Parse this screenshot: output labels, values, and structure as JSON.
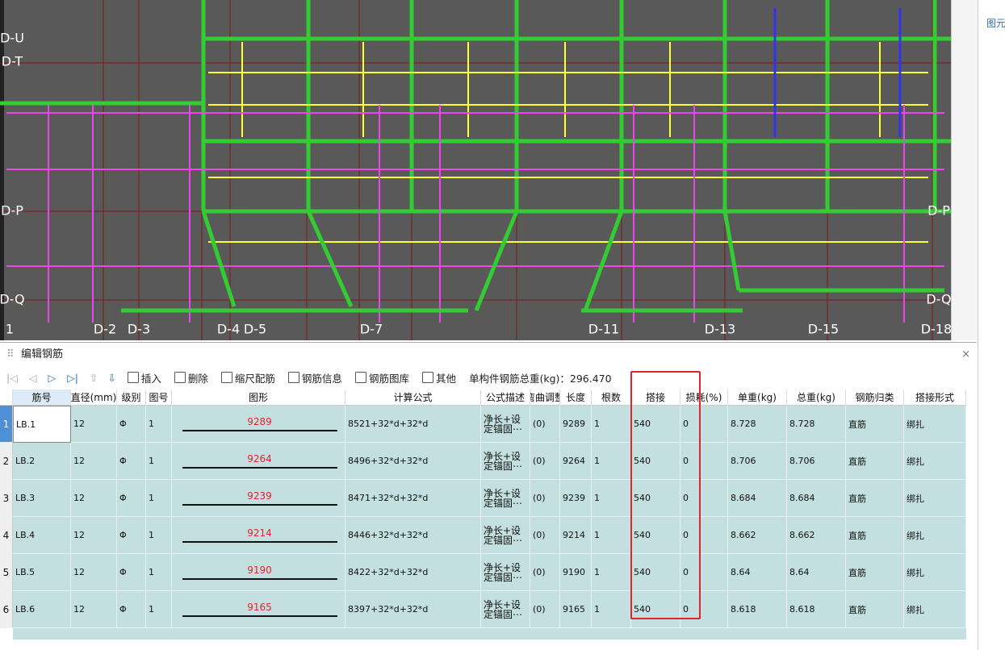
{
  "drawing": {
    "bottom_labels": [
      "1",
      "D-2",
      "D-3",
      "D-4",
      "D-5",
      "D-7",
      "D-11",
      "D-13",
      "D-15",
      "D-18"
    ],
    "side_labels": [
      "D-U",
      "D-T",
      "D-P",
      "D-Q",
      "D-P",
      "D-Q"
    ]
  },
  "side_panel": {
    "tab": "图元"
  },
  "panel": {
    "title": "编辑钢筋",
    "toolbar": [
      "插入",
      "删除",
      "缩尺配筋",
      "钢筋信息",
      "钢筋图库",
      "其他"
    ],
    "total_label": "单构件钢筋总重(kg)：296.470"
  },
  "table": {
    "columns": [
      "筋号",
      "直径(mm)",
      "级别",
      "图号",
      "图形",
      "计算公式",
      "公式描述",
      "弯曲调整",
      "长度",
      "根数",
      "搭接",
      "损耗(%)",
      "单重(kg)",
      "总重(kg)",
      "钢筋归类",
      "搭接形式"
    ],
    "rows": [
      [
        "1",
        "LB.1",
        "12",
        "Φ",
        "1",
        "9289",
        "8521+32*d+32*d",
        "净长+设定锚固⋯",
        "(0)",
        "9289",
        "1",
        "540",
        "0",
        "8.728",
        "8.728",
        "直筋",
        "绑扎"
      ],
      [
        "2",
        "LB.2",
        "12",
        "Φ",
        "1",
        "9264",
        "8496+32*d+32*d",
        "净长+设定锚固⋯",
        "(0)",
        "9264",
        "1",
        "540",
        "0",
        "8.706",
        "8.706",
        "直筋",
        "绑扎"
      ],
      [
        "3",
        "LB.3",
        "12",
        "Φ",
        "1",
        "9239",
        "8471+32*d+32*d",
        "净长+设定锚固⋯",
        "(0)",
        "9239",
        "1",
        "540",
        "0",
        "8.684",
        "8.684",
        "直筋",
        "绑扎"
      ],
      [
        "4",
        "LB.4",
        "12",
        "Φ",
        "1",
        "9214",
        "8446+32*d+32*d",
        "净长+设定锚固⋯",
        "(0)",
        "9214",
        "1",
        "540",
        "0",
        "8.662",
        "8.662",
        "直筋",
        "绑扎"
      ],
      [
        "5",
        "LB.5",
        "12",
        "Φ",
        "1",
        "9190",
        "8422+32*d+32*d",
        "净长+设定锚固⋯",
        "(0)",
        "9190",
        "1",
        "540",
        "0",
        "8.64",
        "8.64",
        "直筋",
        "绑扎"
      ],
      [
        "6",
        "LB.6",
        "12",
        "Φ",
        "1",
        "9165",
        "8397+32*d+32*d",
        "净长+设定锚固⋯",
        "(0)",
        "9165",
        "1",
        "540",
        "0",
        "8.618",
        "8.618",
        "直筋",
        "绑扎"
      ]
    ]
  }
}
